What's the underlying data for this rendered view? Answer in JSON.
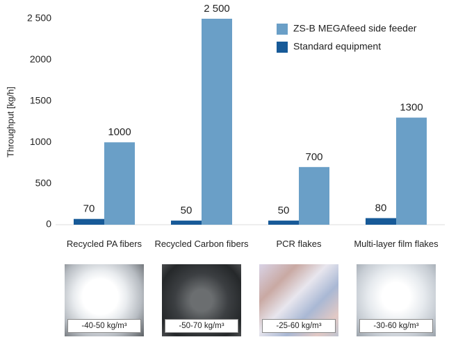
{
  "chart_data": {
    "type": "bar",
    "y_label": "Throughput [kg/h]",
    "categories": [
      "Recycled PA fibers",
      "Recycled Carbon fibers",
      "PCR flakes",
      "Multi-layer film flakes"
    ],
    "series": [
      {
        "name": "ZS-B MEGAfeed side feeder",
        "color": "#6a9fc7",
        "values": [
          1000,
          2500,
          700,
          1300
        ],
        "value_labels": [
          "1000",
          "2 500",
          "700",
          "1300"
        ]
      },
      {
        "name": "Standard equipment",
        "color": "#175a98",
        "values": [
          70,
          50,
          50,
          80
        ]
      }
    ],
    "ylim": [
      0,
      2500
    ],
    "yticks": [
      0,
      500,
      1000,
      1500,
      2000,
      {
        "value": 2500,
        "label": "2 500"
      }
    ],
    "grid": false,
    "legend": "top-right"
  },
  "photos": [
    {
      "caption": "-40-50 kg/m³"
    },
    {
      "caption": "-50-70 kg/m³"
    },
    {
      "caption": "-25-60 kg/m³"
    },
    {
      "caption": "-30-60 kg/m³"
    }
  ]
}
